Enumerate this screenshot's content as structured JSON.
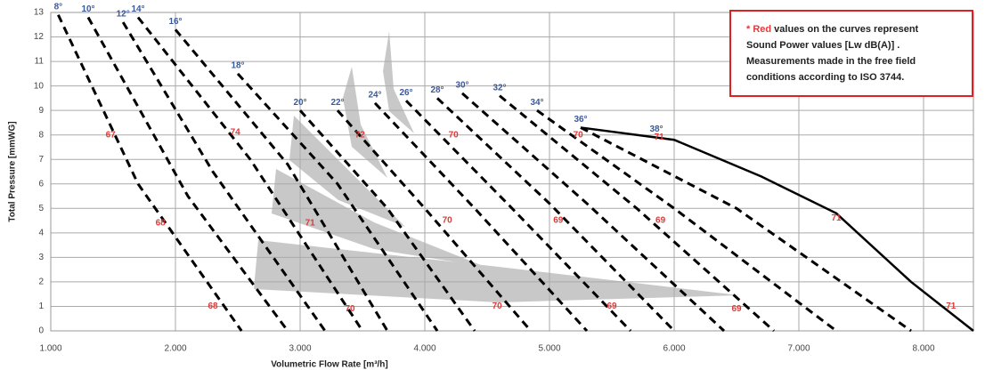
{
  "chart_data": {
    "type": "line",
    "xlabel": "Volumetric Flow Rate  [m³/h]",
    "ylabel": "Total Pressure [mmWG]",
    "xlim": [
      1000,
      8400
    ],
    "ylim": [
      0,
      13
    ],
    "xticks": [
      {
        "value": 1000,
        "label": "1.000"
      },
      {
        "value": 2000,
        "label": "2.000"
      },
      {
        "value": 3000,
        "label": "3.000"
      },
      {
        "value": 4000,
        "label": "4.000"
      },
      {
        "value": 5000,
        "label": "5.000"
      },
      {
        "value": 6000,
        "label": "6.000"
      },
      {
        "value": 7000,
        "label": "7.000"
      },
      {
        "value": 8000,
        "label": "8.000"
      }
    ],
    "yticks": [
      0,
      1,
      2,
      3,
      4,
      5,
      6,
      7,
      8,
      9,
      10,
      11,
      12,
      13
    ],
    "grid": true,
    "color": "#000000",
    "series": [
      {
        "name": "8°",
        "style": "dashed",
        "x": [
          1060,
          1700,
          2530
        ],
        "values": [
          12.9,
          6,
          0
        ]
      },
      {
        "name": "10°",
        "style": "dashed",
        "x": [
          1300,
          2100,
          2900
        ],
        "values": [
          12.8,
          5.5,
          0
        ]
      },
      {
        "name": "12°",
        "style": "dashed",
        "x": [
          1580,
          2300,
          3200
        ],
        "values": [
          12.6,
          6.5,
          0
        ]
      },
      {
        "name": "14°",
        "style": "dashed",
        "x": [
          1700,
          2600,
          3500
        ],
        "values": [
          12.8,
          7,
          0
        ]
      },
      {
        "name": "16°",
        "style": "dashed",
        "x": [
          2000,
          2900,
          3700
        ],
        "values": [
          12.3,
          6.8,
          0
        ]
      },
      {
        "name": "18°",
        "style": "dashed",
        "x": [
          2500,
          3300,
          4100
        ],
        "values": [
          10.5,
          6,
          0
        ]
      },
      {
        "name": "20°",
        "style": "dashed",
        "x": [
          3000,
          3700,
          4400
        ],
        "values": [
          9,
          5,
          0
        ]
      },
      {
        "name": "22°",
        "style": "dashed",
        "x": [
          3300,
          4000,
          4850
        ],
        "values": [
          9,
          5,
          0
        ]
      },
      {
        "name": "24°",
        "style": "dashed",
        "x": [
          3600,
          4400,
          5300
        ],
        "values": [
          9.3,
          5,
          0
        ]
      },
      {
        "name": "26°",
        "style": "dashed",
        "x": [
          3850,
          4700,
          5650
        ],
        "values": [
          9.4,
          5,
          0
        ]
      },
      {
        "name": "28°",
        "style": "dashed",
        "x": [
          4100,
          5000,
          6000
        ],
        "values": [
          9.5,
          5.2,
          0
        ]
      },
      {
        "name": "30°",
        "style": "dashed",
        "x": [
          4300,
          5300,
          6400
        ],
        "values": [
          9.7,
          5.2,
          0
        ]
      },
      {
        "name": "32°",
        "style": "dashed",
        "x": [
          4600,
          5700,
          6800
        ],
        "values": [
          9.6,
          5,
          0
        ]
      },
      {
        "name": "34°",
        "style": "dashed",
        "x": [
          4900,
          6000,
          7300
        ],
        "values": [
          9,
          5,
          0
        ]
      },
      {
        "name": "36°",
        "style": "dashed",
        "x": [
          5250,
          6500,
          7900
        ],
        "values": [
          8.3,
          5,
          0
        ]
      },
      {
        "name": "38°",
        "style": "solid",
        "x": [
          5250,
          6000,
          6700,
          7300,
          7900,
          8400
        ],
        "values": [
          8.3,
          7.8,
          6.3,
          4.8,
          2,
          0
        ]
      }
    ],
    "sound_labels": [
      {
        "value": 67,
        "x": 1480,
        "y": 8
      },
      {
        "value": 74,
        "x": 2480,
        "y": 8.1
      },
      {
        "value": 72,
        "x": 3480,
        "y": 8
      },
      {
        "value": 70,
        "x": 4230,
        "y": 8
      },
      {
        "value": 70,
        "x": 5230,
        "y": 8
      },
      {
        "value": 71,
        "x": 5880,
        "y": 7.9
      },
      {
        "value": 68,
        "x": 1880,
        "y": 4.4
      },
      {
        "value": 71,
        "x": 3080,
        "y": 4.4
      },
      {
        "value": 70,
        "x": 4180,
        "y": 4.5
      },
      {
        "value": 69,
        "x": 5070,
        "y": 4.5
      },
      {
        "value": 69,
        "x": 5890,
        "y": 4.5
      },
      {
        "value": 71,
        "x": 7300,
        "y": 4.6
      },
      {
        "value": 68,
        "x": 2300,
        "y": 1
      },
      {
        "value": 70,
        "x": 3400,
        "y": 0.9
      },
      {
        "value": 70,
        "x": 4580,
        "y": 1
      },
      {
        "value": 69,
        "x": 5500,
        "y": 1
      },
      {
        "value": 69,
        "x": 6500,
        "y": 0.9
      },
      {
        "value": 71,
        "x": 8220,
        "y": 1
      }
    ],
    "note": {
      "highlight": "* Red",
      "lines": [
        " values on the curves represent",
        "Sound Power values [Lw dB(A)] .",
        "Measurements made in the free field",
        "conditions according to ISO 3744."
      ]
    }
  }
}
